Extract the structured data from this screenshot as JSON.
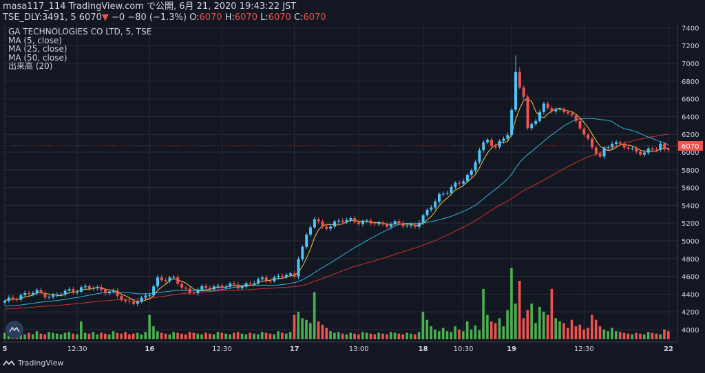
{
  "header": {
    "line1": "masa117_114 TradingView.com で公開, 6月 21, 2020 19:43:22 JST",
    "symbol": "TSE_DLY:3491, 5 6070",
    "change": "−0 −80 (−1.3%)",
    "ohlc": [
      {
        "label": "O:",
        "value": "6070"
      },
      {
        "label": "H:",
        "value": "6070"
      },
      {
        "label": "L:",
        "value": "6070"
      },
      {
        "label": "C:",
        "value": "6070"
      }
    ]
  },
  "legend": {
    "title": "GA TECHNOLOGIES CO LTD, 5, TSE",
    "ma5": "MA (5, close)",
    "ma25": "MA (25, close)",
    "ma50": "MA (50, close)",
    "volume": "出来高 (20)"
  },
  "brand": "TradingView",
  "colors": {
    "background": "#131722",
    "grid": "#2a2e39",
    "up": "#26a69a",
    "down": "#ef5350",
    "up_candle": "#4fc3f7",
    "vol_up": "#4caf50",
    "vol_down": "#ef5350",
    "ma5": "#f7c948",
    "ma25": "#2fb8d8",
    "ma50": "#d32f2f",
    "last_price": "#ef5350",
    "text": "#d1d4dc"
  },
  "chart_data": {
    "type": "candlestick",
    "title": "GA TECHNOLOGIES CO LTD, 5, TSE",
    "interval": "5",
    "y_ticks": [
      4000,
      4200,
      4400,
      4600,
      4800,
      5000,
      5200,
      5400,
      5600,
      5800,
      6000,
      6200,
      6400,
      6600,
      6800,
      7000,
      7200,
      7400
    ],
    "ylim": [
      3860,
      7450
    ],
    "last_price": "6070",
    "x_ticks": [
      {
        "label": "5",
        "i": 0,
        "bold": true
      },
      {
        "label": "12:30",
        "i": 18
      },
      {
        "label": "16",
        "i": 36,
        "bold": true
      },
      {
        "label": "12:30",
        "i": 54
      },
      {
        "label": "17",
        "i": 72,
        "bold": true
      },
      {
        "label": "13:00",
        "i": 88
      },
      {
        "label": "18",
        "i": 104,
        "bold": true
      },
      {
        "label": "10:30",
        "i": 114
      },
      {
        "label": "19",
        "i": 126,
        "bold": true
      },
      {
        "label": "12:30",
        "i": 144
      },
      {
        "label": "22",
        "i": 165,
        "bold": true
      }
    ],
    "keypoints": [
      [
        0,
        4310
      ],
      [
        4,
        4390
      ],
      [
        8,
        4420
      ],
      [
        12,
        4370
      ],
      [
        16,
        4440
      ],
      [
        20,
        4470
      ],
      [
        24,
        4460
      ],
      [
        27,
        4410
      ],
      [
        30,
        4310
      ],
      [
        34,
        4330
      ],
      [
        36,
        4400
      ],
      [
        38,
        4580
      ],
      [
        42,
        4560
      ],
      [
        46,
        4420
      ],
      [
        52,
        4490
      ],
      [
        58,
        4490
      ],
      [
        64,
        4560
      ],
      [
        70,
        4610
      ],
      [
        72,
        4600
      ],
      [
        73,
        4830
      ],
      [
        75,
        5050
      ],
      [
        77,
        5250
      ],
      [
        79,
        5150
      ],
      [
        82,
        5200
      ],
      [
        86,
        5240
      ],
      [
        90,
        5200
      ],
      [
        94,
        5190
      ],
      [
        98,
        5190
      ],
      [
        100,
        5170
      ],
      [
        102,
        5180
      ],
      [
        104,
        5260
      ],
      [
        106,
        5390
      ],
      [
        108,
        5520
      ],
      [
        110,
        5560
      ],
      [
        113,
        5650
      ],
      [
        116,
        5790
      ],
      [
        118,
        6020
      ],
      [
        120,
        6130
      ],
      [
        122,
        6070
      ],
      [
        125,
        6200
      ],
      [
        126,
        6450
      ],
      [
        127,
        6880
      ],
      [
        128,
        6750
      ],
      [
        129,
        6650
      ],
      [
        130,
        6260
      ],
      [
        132,
        6360
      ],
      [
        134,
        6520
      ],
      [
        137,
        6480
      ],
      [
        140,
        6440
      ],
      [
        143,
        6300
      ],
      [
        146,
        6040
      ],
      [
        148,
        5940
      ],
      [
        149,
        6040
      ],
      [
        151,
        6120
      ],
      [
        153,
        6070
      ],
      [
        156,
        6030
      ],
      [
        159,
        5990
      ],
      [
        162,
        6040
      ],
      [
        163,
        6090
      ],
      [
        164,
        6030
      ],
      [
        166,
        6070
      ]
    ],
    "spikes": [
      {
        "i": 127,
        "high": 7090
      },
      {
        "i": 128,
        "high": 6960
      }
    ],
    "volume": [
      0.08,
      0.1,
      0.07,
      0.09,
      0.11,
      0.06,
      0.08,
      0.06,
      0.1,
      0.07,
      0.06,
      0.09,
      0.08,
      0.07,
      0.06,
      0.08,
      0.09,
      0.07,
      0.06,
      0.22,
      0.08,
      0.07,
      0.09,
      0.06,
      0.08,
      0.07,
      0.06,
      0.1,
      0.08,
      0.07,
      0.09,
      0.06,
      0.07,
      0.08,
      0.06,
      0.09,
      0.3,
      0.16,
      0.1,
      0.08,
      0.07,
      0.06,
      0.09,
      0.08,
      0.07,
      0.06,
      0.09,
      0.08,
      0.07,
      0.06,
      0.08,
      0.07,
      0.06,
      0.09,
      0.08,
      0.07,
      0.06,
      0.08,
      0.09,
      0.07,
      0.06,
      0.08,
      0.07,
      0.06,
      0.09,
      0.08,
      0.07,
      0.06,
      0.1,
      0.08,
      0.07,
      0.09,
      0.3,
      0.34,
      0.26,
      0.24,
      0.2,
      0.58,
      0.22,
      0.18,
      0.14,
      0.1,
      0.08,
      0.09,
      0.07,
      0.06,
      0.08,
      0.07,
      0.06,
      0.09,
      0.08,
      0.07,
      0.06,
      0.08,
      0.07,
      0.06,
      0.09,
      0.08,
      0.07,
      0.06,
      0.08,
      0.07,
      0.06,
      0.09,
      0.34,
      0.24,
      0.16,
      0.12,
      0.1,
      0.14,
      0.1,
      0.09,
      0.16,
      0.12,
      0.1,
      0.22,
      0.12,
      0.17,
      0.11,
      0.62,
      0.3,
      0.22,
      0.2,
      0.26,
      0.16,
      0.36,
      0.88,
      0.44,
      0.72,
      0.26,
      0.36,
      0.44,
      0.2,
      0.4,
      0.34,
      0.3,
      0.62,
      0.26,
      0.22,
      0.2,
      0.14,
      0.24,
      0.16,
      0.18,
      0.12,
      0.14,
      0.3,
      0.24,
      0.16,
      0.12,
      0.1,
      0.14,
      0.1,
      0.09,
      0.08,
      0.07,
      0.06,
      0.08,
      0.07,
      0.06,
      0.09,
      0.08,
      0.07,
      0.06,
      0.12,
      0.1
    ]
  }
}
